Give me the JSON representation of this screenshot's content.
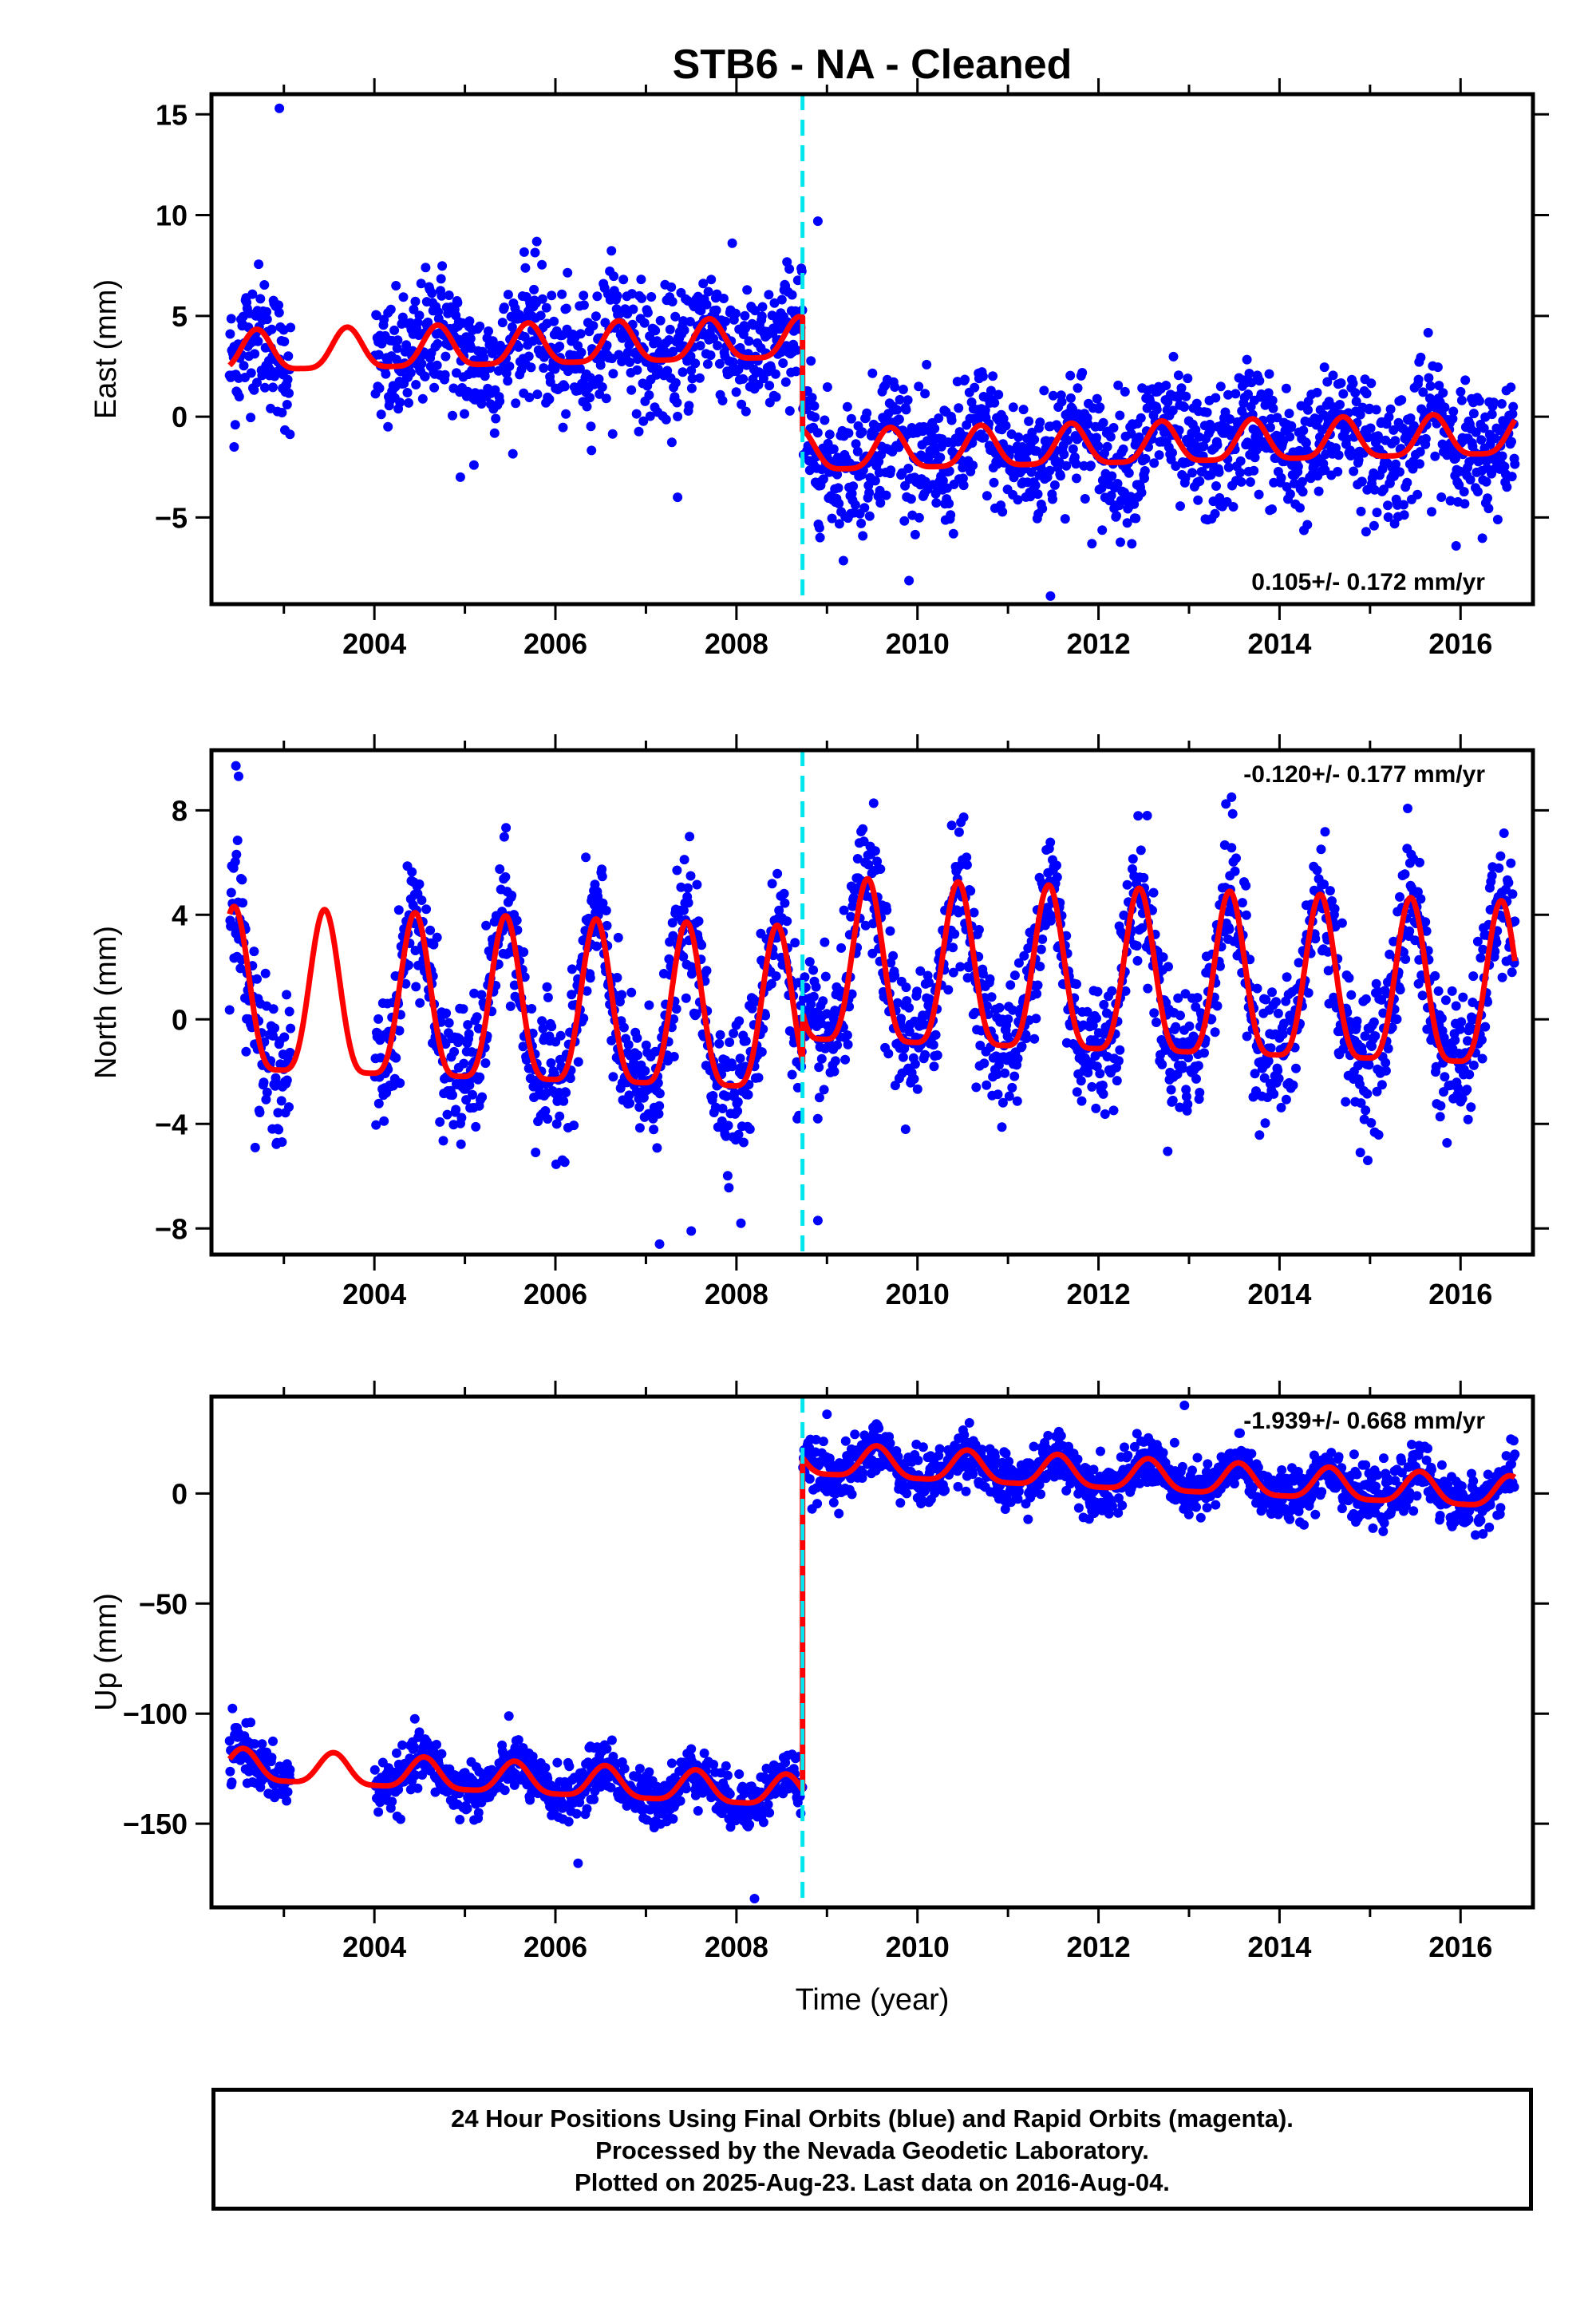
{
  "title": "STB6  - NA - Cleaned",
  "xlabel": "Time (year)",
  "colors": {
    "points": "#0000ff",
    "model": "#ff0000",
    "offset_line": "#00e5ee"
  },
  "caption": {
    "line1": "24 Hour Positions Using Final Orbits (blue) and Rapid Orbits (magenta).",
    "line2": "Processed by the Nevada Geodetic Laboratory.",
    "line3": "Plotted on 2025-Aug-23. Last data on 2016-Aug-04."
  },
  "chart_data": [
    {
      "type": "scatter",
      "name": "east",
      "ylabel": "East (mm)",
      "rate_text": "0.105+/- 0.172 mm/yr",
      "xlim": [
        2002.2,
        2016.8
      ],
      "ylim": [
        -9.3,
        16.0
      ],
      "xticks": [
        2004,
        2006,
        2008,
        2010,
        2012,
        2014,
        2016
      ],
      "yticks": [
        -5,
        0,
        5,
        10,
        15
      ],
      "grid": false,
      "offset_epoch": 2008.73,
      "data_range": [
        2002.4,
        2016.6
      ],
      "gaps": [
        [
          2003.08,
          2004.0
        ]
      ],
      "model": {
        "pre_offset_level": 3.8,
        "post_offset_level": -1.8,
        "trend_per_year": 0.105,
        "annual_amplitude": 1.0,
        "annual_peak": 0.7
      },
      "scatter_sd": 1.6,
      "outliers": [
        [
          2002.95,
          15.3
        ],
        [
          2008.9,
          9.7
        ],
        [
          2011.47,
          -8.9
        ],
        [
          2004.95,
          -3.0
        ],
        [
          2005.1,
          -2.4
        ],
        [
          2007.35,
          -4.0
        ],
        [
          2004.15,
          -0.5
        ],
        [
          2002.45,
          -1.5
        ]
      ]
    },
    {
      "type": "scatter",
      "name": "north",
      "ylabel": "North (mm)",
      "rate_text": "-0.120+/- 0.177 mm/yr",
      "xlim": [
        2002.2,
        2016.8
      ],
      "ylim": [
        -9.0,
        10.3
      ],
      "xticks": [
        2004,
        2006,
        2008,
        2010,
        2012,
        2014,
        2016
      ],
      "yticks": [
        -8,
        -4,
        0,
        4,
        8
      ],
      "grid": false,
      "offset_epoch": 2008.73,
      "data_range": [
        2002.4,
        2016.6
      ],
      "gaps": [
        [
          2003.08,
          2004.0
        ]
      ],
      "model": {
        "pre_offset_level": -0.4,
        "post_offset_level": 1.5,
        "trend_per_year": -0.12,
        "annual_amplitude": 3.1,
        "annual_peak": 0.45
      },
      "scatter_sd": 1.3,
      "outliers": [
        [
          2002.47,
          9.7
        ],
        [
          2002.5,
          9.3
        ],
        [
          2013.47,
          8.5
        ],
        [
          2008.9,
          -7.7
        ],
        [
          2007.15,
          -8.6
        ],
        [
          2007.5,
          -8.1
        ],
        [
          2008.05,
          -7.8
        ]
      ]
    },
    {
      "type": "scatter",
      "name": "up",
      "ylabel": "Up (mm)",
      "rate_text": "-1.939+/- 0.668 mm/yr",
      "xlim": [
        2002.2,
        2016.8
      ],
      "ylim": [
        -188,
        44
      ],
      "xticks": [
        2004,
        2006,
        2008,
        2010,
        2012,
        2014,
        2016
      ],
      "yticks": [
        -150,
        -100,
        -50,
        0
      ],
      "grid": false,
      "offset_epoch": 2008.73,
      "data_range": [
        2002.4,
        2016.6
      ],
      "gaps": [
        [
          2003.08,
          2004.0
        ]
      ],
      "model": {
        "pre_offset_level": -138,
        "post_offset_level": 13,
        "trend_per_year": -1.939,
        "annual_amplitude": 7,
        "annual_peak": 0.55
      },
      "scatter_sd": 6,
      "outliers": [
        [
          2008.2,
          -184
        ],
        [
          2009.0,
          36
        ],
        [
          2012.95,
          40
        ],
        [
          2006.25,
          -168
        ]
      ]
    }
  ]
}
